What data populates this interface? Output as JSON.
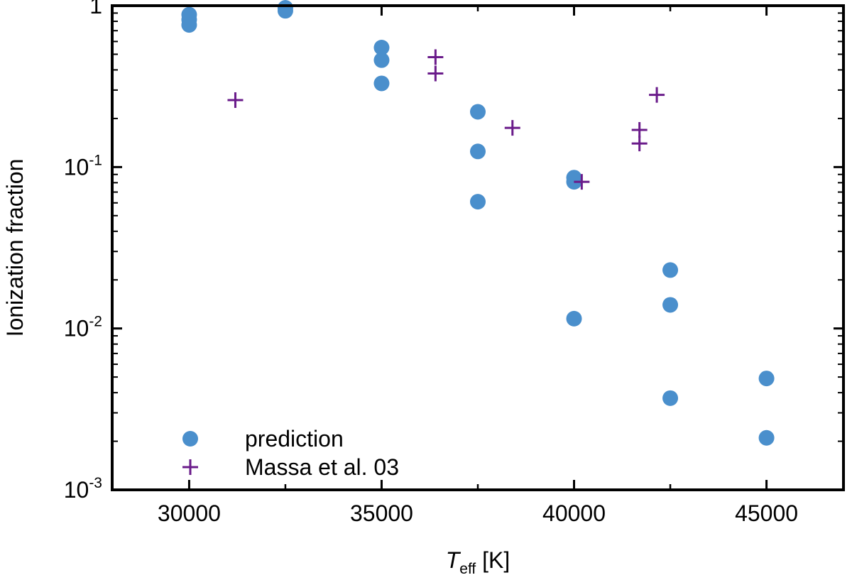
{
  "chart_data": {
    "type": "scatter",
    "title": "",
    "xlabel": {
      "main": "T",
      "subscript": "eff",
      "unit": " [K]"
    },
    "ylabel": "Ionization fraction",
    "xlim": [
      28000,
      47000
    ],
    "ylim": [
      0.001,
      1
    ],
    "yscale": "log",
    "x_ticks": [
      30000,
      35000,
      40000,
      45000
    ],
    "x_tick_labels": [
      "30000",
      "35000",
      "40000",
      "45000"
    ],
    "y_ticks": [
      {
        "value": 1,
        "base": "1",
        "exp": ""
      },
      {
        "value": 0.1,
        "base": "10",
        "exp": "-1"
      },
      {
        "value": 0.01,
        "base": "10",
        "exp": "-2"
      },
      {
        "value": 0.001,
        "base": "10",
        "exp": "-3"
      }
    ],
    "grid": false,
    "legend_position": "bottom-left",
    "series": [
      {
        "name": "prediction",
        "marker": "circle",
        "color": "#4a8fcc",
        "points": [
          [
            30000,
            0.88
          ],
          [
            30000,
            0.82
          ],
          [
            30000,
            0.76
          ],
          [
            32500,
            0.97
          ],
          [
            32500,
            0.93
          ],
          [
            35000,
            0.55
          ],
          [
            35000,
            0.46
          ],
          [
            35000,
            0.33
          ],
          [
            37500,
            0.22
          ],
          [
            37500,
            0.125
          ],
          [
            37500,
            0.061
          ],
          [
            40000,
            0.086
          ],
          [
            40000,
            0.081
          ],
          [
            40000,
            0.0115
          ],
          [
            42500,
            0.023
          ],
          [
            42500,
            0.014
          ],
          [
            42500,
            0.0037
          ],
          [
            45000,
            0.0049
          ],
          [
            45000,
            0.0021
          ]
        ]
      },
      {
        "name": "Massa et al. 03",
        "marker": "plus",
        "color": "#6a1b8a",
        "points": [
          [
            31200,
            0.26
          ],
          [
            36400,
            0.48
          ],
          [
            36400,
            0.38
          ],
          [
            38400,
            0.175
          ],
          [
            40200,
            0.081
          ],
          [
            41700,
            0.17
          ],
          [
            41700,
            0.14
          ],
          [
            42150,
            0.28
          ]
        ]
      }
    ]
  }
}
